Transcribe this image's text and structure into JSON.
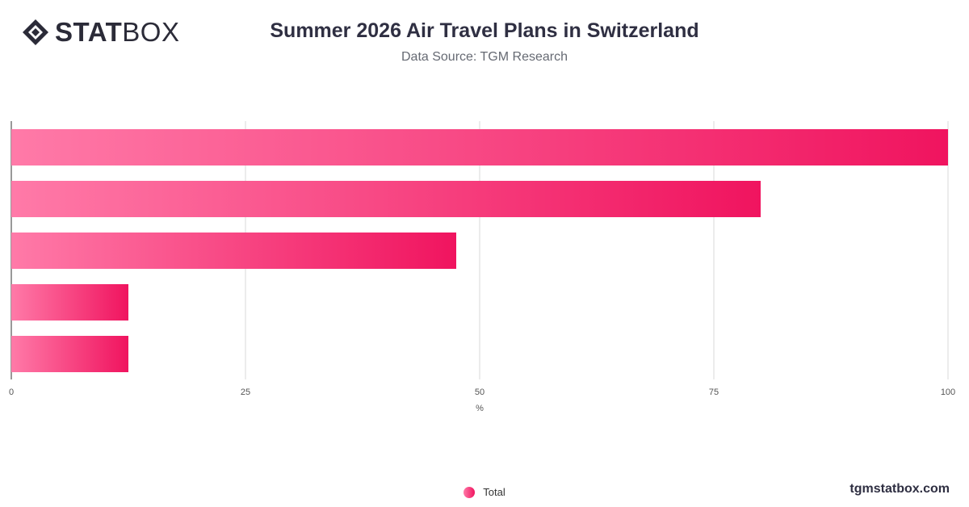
{
  "logo": {
    "bold": "STAT",
    "thin": "BOX"
  },
  "header": {
    "title": "Summer 2026 Air Travel Plans in Switzerland",
    "subtitle": "Data Source: TGM Research"
  },
  "chart_data": {
    "type": "bar",
    "orientation": "horizontal",
    "categories": [
      "",
      "",
      "",
      "",
      ""
    ],
    "series": [
      {
        "name": "Total",
        "values": [
          100,
          80,
          47.5,
          12.5,
          12.5
        ]
      }
    ],
    "xlabel": "%",
    "ylabel": "",
    "xlim": [
      0,
      100
    ],
    "xticks": [
      0,
      25,
      50,
      75,
      100
    ],
    "grid": true,
    "legend": "bottom-center",
    "colors": {
      "bar_start": "#ff7aa8",
      "bar_end": "#f0145f",
      "grid": "#d9d9d9",
      "axis": "#333333"
    }
  },
  "legend": {
    "label": "Total"
  },
  "footer": {
    "watermark": "tgmstatbox.com"
  }
}
